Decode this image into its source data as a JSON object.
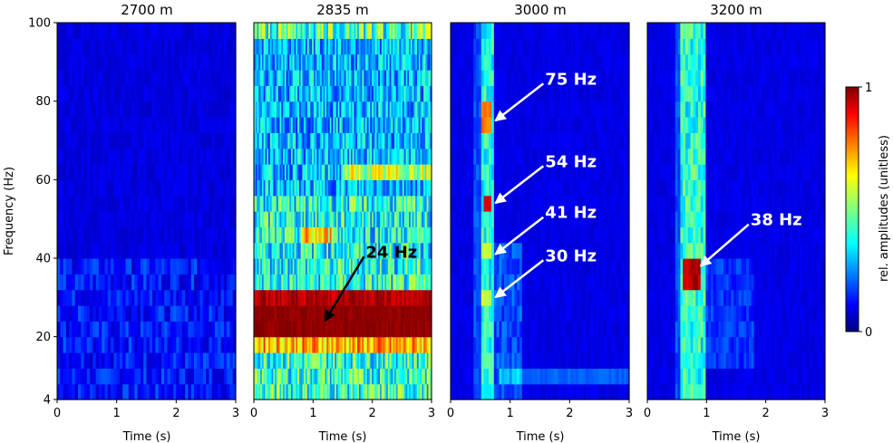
{
  "chart_data": {
    "type": "heatmap",
    "title": "",
    "xlabel": "Time (s)",
    "ylabel": "Frequency (Hz)",
    "xlim": [
      0,
      3
    ],
    "ylim": [
      4,
      100
    ],
    "xticks": [
      0,
      1,
      2,
      3
    ],
    "yticks": [
      4,
      20,
      40,
      60,
      80,
      100
    ],
    "colormap": "jet",
    "colorbar": {
      "label": "rel. amplitudes (unitless)",
      "min": 0,
      "max": 1,
      "min_label": "0",
      "max_label": "1"
    },
    "panels": [
      {
        "title": "2700 m",
        "peaks": [],
        "annotations": []
      },
      {
        "title": "2835 m",
        "peaks": [
          {
            "time_range": [
              0,
              3
            ],
            "freq_range": [
              20,
              31
            ],
            "value": 1.0
          }
        ],
        "annotations": [
          {
            "text": "24 Hz",
            "time": 1.2,
            "freq": 24,
            "color": "#000000"
          }
        ]
      },
      {
        "title": "3000 m",
        "peaks": [
          {
            "time_range": [
              0.5,
              0.7
            ],
            "freq_range": [
              72,
              78
            ],
            "value": 0.8
          },
          {
            "time_range": [
              0.55,
              0.7
            ],
            "freq_range": [
              52,
              56
            ],
            "value": 1.0
          },
          {
            "time_range": [
              0.5,
              0.7
            ],
            "freq_range": [
              39,
              43
            ],
            "value": 0.6
          },
          {
            "time_range": [
              0.5,
              0.7
            ],
            "freq_range": [
              28,
              32
            ],
            "value": 0.6
          }
        ],
        "annotations": [
          {
            "text": "75 Hz",
            "time": 0.75,
            "freq": 75,
            "color": "#ffffff"
          },
          {
            "text": "54 Hz",
            "time": 0.75,
            "freq": 54,
            "color": "#ffffff"
          },
          {
            "text": "41 Hz",
            "time": 0.75,
            "freq": 41,
            "color": "#ffffff"
          },
          {
            "text": "30 Hz",
            "time": 0.75,
            "freq": 30,
            "color": "#ffffff"
          }
        ]
      },
      {
        "title": "3200 m",
        "peaks": [
          {
            "time_range": [
              0.6,
              0.9
            ],
            "freq_range": [
              32,
              40
            ],
            "value": 1.0
          }
        ],
        "annotations": [
          {
            "text": "38 Hz",
            "time": 0.9,
            "freq": 38,
            "color": "#ffffff"
          }
        ]
      }
    ]
  }
}
